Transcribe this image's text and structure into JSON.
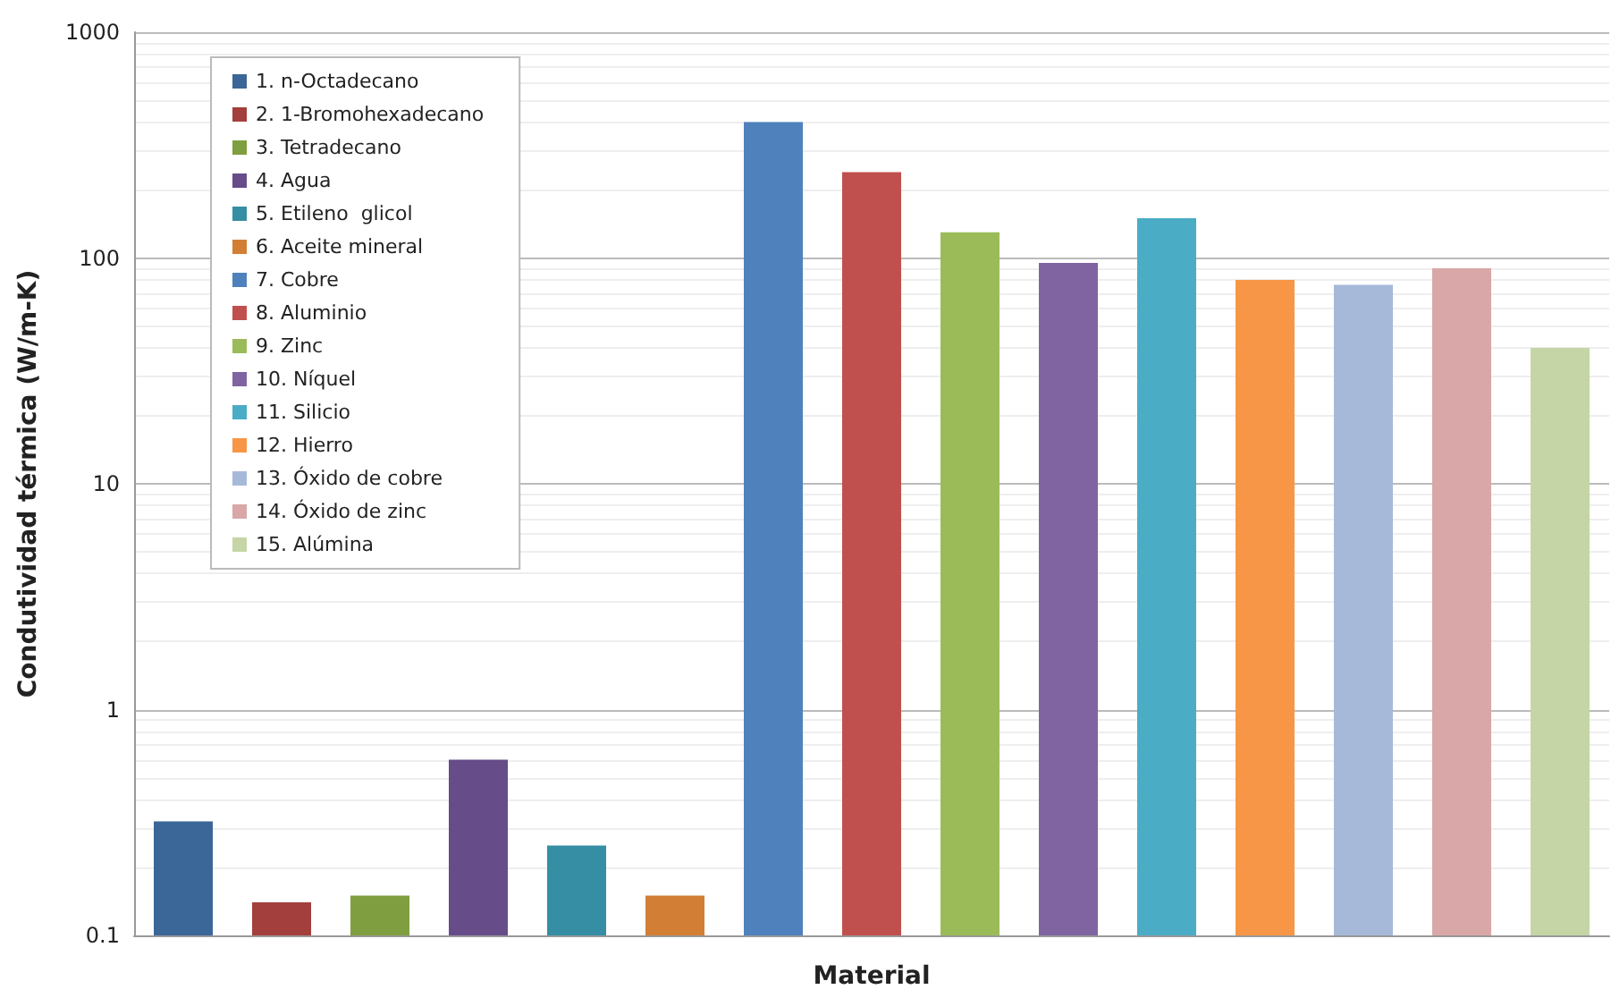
{
  "chart_data": {
    "type": "bar",
    "xlabel": "Material",
    "ylabel": "Condutividad térmica (W/m-K)",
    "categories": [
      null,
      null,
      null,
      null,
      null,
      null,
      null,
      null,
      null,
      null,
      null,
      null,
      null,
      null,
      null
    ],
    "series": [
      {
        "name": "1. n-Octadecano",
        "color": "#3b6698",
        "values": [
          0.32,
          null,
          null,
          null,
          null,
          null,
          null,
          null,
          null,
          null,
          null,
          null,
          null,
          null,
          null
        ]
      },
      {
        "name": "2. 1-Bromohexadecano",
        "color": "#a33f3c",
        "values": [
          null,
          0.14,
          null,
          null,
          null,
          null,
          null,
          null,
          null,
          null,
          null,
          null,
          null,
          null,
          null
        ]
      },
      {
        "name": "3. Tetradecano",
        "color": "#7f9e3f",
        "values": [
          null,
          null,
          0.15,
          null,
          null,
          null,
          null,
          null,
          null,
          null,
          null,
          null,
          null,
          null,
          null
        ]
      },
      {
        "name": "4. Agua",
        "color": "#664c89",
        "values": [
          null,
          null,
          null,
          0.6,
          null,
          null,
          null,
          null,
          null,
          null,
          null,
          null,
          null,
          null,
          null
        ]
      },
      {
        "name": "5. Etileno  glicol",
        "color": "#358ea3",
        "values": [
          null,
          null,
          null,
          null,
          0.25,
          null,
          null,
          null,
          null,
          null,
          null,
          null,
          null,
          null,
          null
        ]
      },
      {
        "name": "6. Aceite mineral",
        "color": "#d27f35",
        "values": [
          null,
          null,
          null,
          null,
          null,
          0.15,
          null,
          null,
          null,
          null,
          null,
          null,
          null,
          null,
          null
        ]
      },
      {
        "name": "7. Cobre",
        "color": "#4f81bd",
        "values": [
          null,
          null,
          null,
          null,
          null,
          null,
          400,
          null,
          null,
          null,
          null,
          null,
          null,
          null,
          null
        ]
      },
      {
        "name": "8. Aluminio",
        "color": "#c0504d",
        "values": [
          null,
          null,
          null,
          null,
          null,
          null,
          null,
          240,
          null,
          null,
          null,
          null,
          null,
          null,
          null
        ]
      },
      {
        "name": "9. Zinc",
        "color": "#9bbb59",
        "values": [
          null,
          null,
          null,
          null,
          null,
          null,
          null,
          null,
          130,
          null,
          null,
          null,
          null,
          null,
          null
        ]
      },
      {
        "name": "10. Níquel",
        "color": "#8064a2",
        "values": [
          null,
          null,
          null,
          null,
          null,
          null,
          null,
          null,
          null,
          95,
          null,
          null,
          null,
          null,
          null
        ]
      },
      {
        "name": "11. Silicio",
        "color": "#4bacc6",
        "values": [
          null,
          null,
          null,
          null,
          null,
          null,
          null,
          null,
          null,
          null,
          150,
          null,
          null,
          null,
          null
        ]
      },
      {
        "name": "12. Hierro",
        "color": "#f79646",
        "values": [
          null,
          null,
          null,
          null,
          null,
          null,
          null,
          null,
          null,
          null,
          null,
          80,
          null,
          null,
          null
        ]
      },
      {
        "name": "13. Óxido de cobre",
        "color": "#a7b9d9",
        "values": [
          null,
          null,
          null,
          null,
          null,
          null,
          null,
          null,
          null,
          null,
          null,
          null,
          76,
          null,
          null
        ]
      },
      {
        "name": "14. Óxido de zinc",
        "color": "#d9a7a7",
        "values": [
          null,
          null,
          null,
          null,
          null,
          null,
          null,
          null,
          null,
          null,
          null,
          null,
          null,
          90,
          null
        ]
      },
      {
        "name": "15. Alúmina",
        "color": "#c5d5a6",
        "values": [
          null,
          null,
          null,
          null,
          null,
          null,
          null,
          null,
          null,
          null,
          null,
          null,
          null,
          null,
          40
        ]
      }
    ],
    "log": "y",
    "ylim": [
      0.1,
      1000
    ],
    "yticks": [
      0.1,
      1,
      10,
      100,
      1000
    ],
    "grid": "y",
    "legend": "top left"
  }
}
